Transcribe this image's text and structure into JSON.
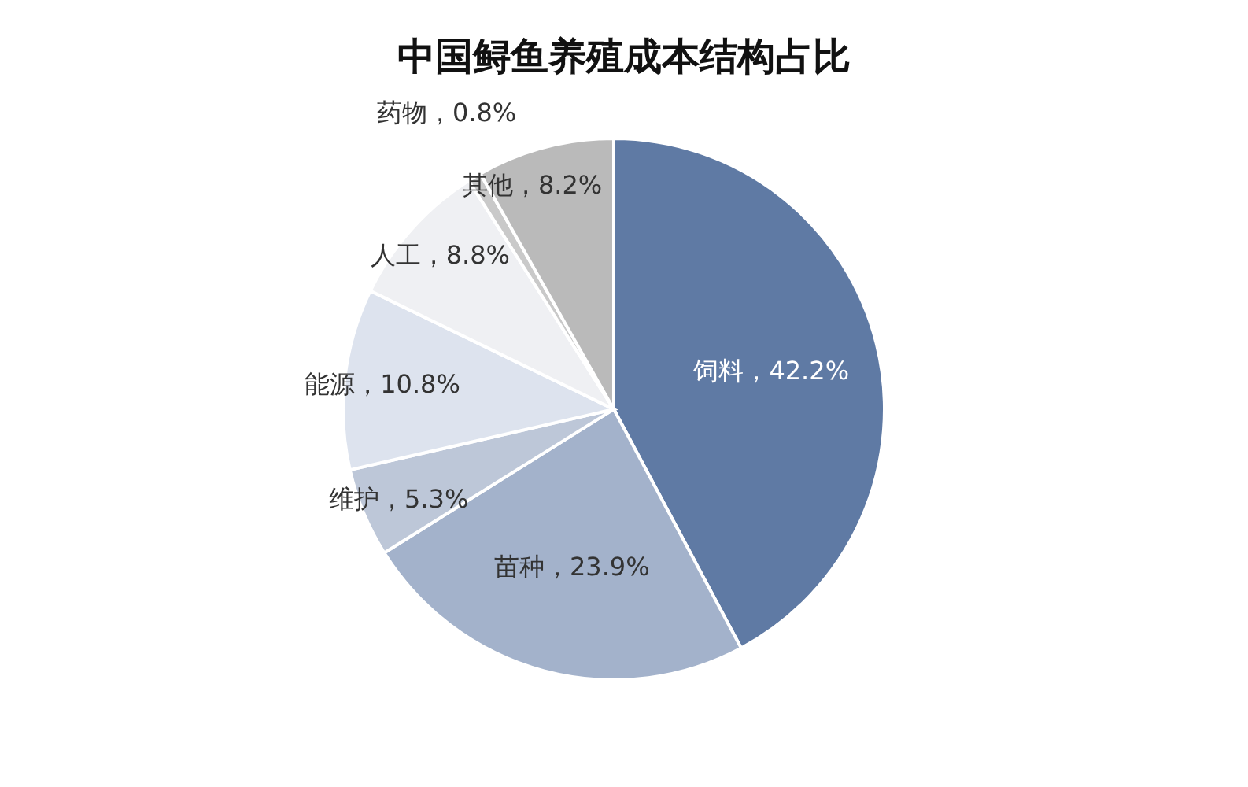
{
  "chart_data": {
    "type": "pie",
    "title": "中国鲟鱼养殖成本结构占比",
    "categories": [
      "饲料",
      "苗种",
      "维护",
      "能源",
      "人工",
      "药物",
      "其他"
    ],
    "values": [
      42.2,
      23.9,
      5.3,
      10.8,
      8.8,
      0.8,
      8.2
    ],
    "value_labels": [
      "42.2%",
      "23.9%",
      "5.3%",
      "10.8%",
      "8.8%",
      "0.8%",
      "8.2%"
    ],
    "colors": [
      "#5f7aa4",
      "#a3b2cb",
      "#bdc7d8",
      "#dde3ee",
      "#eff0f3",
      "#c9c9c9",
      "#bababa"
    ],
    "legend": false
  }
}
